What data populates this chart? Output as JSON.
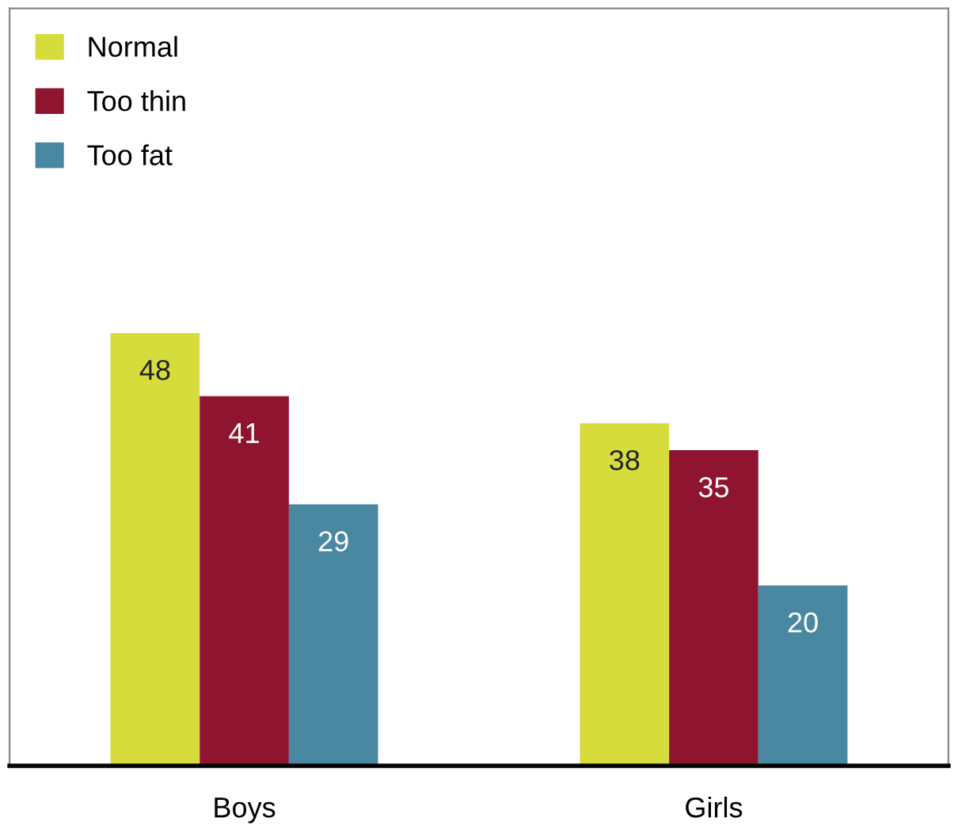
{
  "chart_data": {
    "type": "bar",
    "categories": [
      "Boys",
      "Girls"
    ],
    "series": [
      {
        "name": "Normal",
        "color": "#d6dc3c",
        "values": [
          48,
          38
        ]
      },
      {
        "name": "Too thin",
        "color": "#8e1430",
        "values": [
          41,
          35
        ]
      },
      {
        "name": "Too fat",
        "color": "#4a88a2",
        "values": [
          29,
          20
        ]
      }
    ],
    "data_labels": true,
    "legend": "top left",
    "grid": false,
    "tick_labels": "x"
  }
}
